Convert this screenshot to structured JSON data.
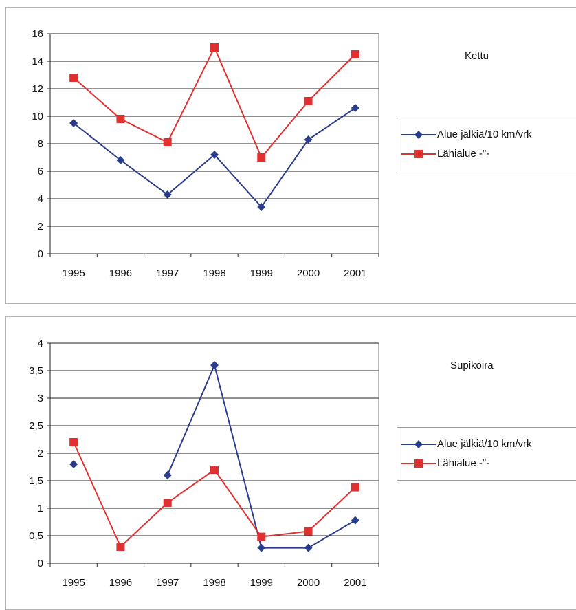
{
  "chart_data": [
    {
      "type": "line",
      "title": "Kettu",
      "categories": [
        "1995",
        "1996",
        "1997",
        "1998",
        "1999",
        "2000",
        "2001"
      ],
      "yticks": [
        "0",
        "2",
        "4",
        "6",
        "8",
        "10",
        "12",
        "14",
        "16"
      ],
      "ylim": [
        0,
        16
      ],
      "grid": true,
      "legend_position": "right",
      "series": [
        {
          "name": "Alue jälkiä/10 km/vrk",
          "color": "#2a3c8c",
          "marker": "diamond",
          "values": [
            9.5,
            6.8,
            4.3,
            7.2,
            3.4,
            8.3,
            10.6
          ]
        },
        {
          "name": "Lähialue  -\"-",
          "color": "#e03030",
          "marker": "square",
          "values": [
            12.8,
            9.8,
            8.1,
            15.0,
            7.0,
            11.1,
            14.5
          ]
        }
      ]
    },
    {
      "type": "line",
      "title": "Supikoira",
      "categories": [
        "1995",
        "1996",
        "1997",
        "1998",
        "1999",
        "2000",
        "2001"
      ],
      "yticks": [
        "0",
        "0,5",
        "1",
        "1,5",
        "2",
        "2,5",
        "3",
        "3,5",
        "4"
      ],
      "ylim": [
        0,
        4
      ],
      "grid": true,
      "legend_position": "right",
      "series": [
        {
          "name": "Alue jälkiä/10 km/vrk",
          "color": "#2a3c8c",
          "marker": "diamond",
          "values": [
            1.8,
            null,
            1.6,
            3.6,
            0.28,
            0.28,
            0.78
          ]
        },
        {
          "name": "Lähialue  -\"-",
          "color": "#e03030",
          "marker": "square",
          "values": [
            2.2,
            0.3,
            1.1,
            1.7,
            0.48,
            0.58,
            1.38
          ]
        }
      ]
    }
  ]
}
